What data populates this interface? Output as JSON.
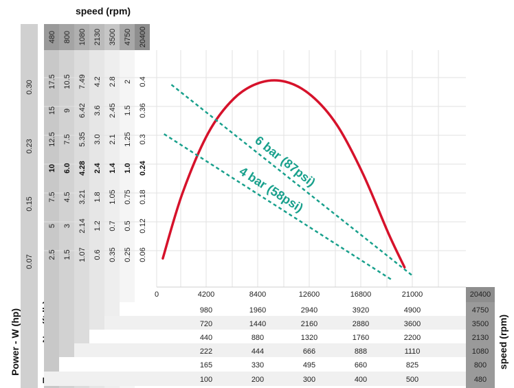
{
  "chart_data": {
    "type": "line",
    "title": "",
    "top_speed_label": "speed (rpm)",
    "right_speed_label": "speed (rpm)",
    "power_label": "Power - W (hp)",
    "torque_label": "Torque - Nm (ft.lb)",
    "top_speed_values": [
      "480",
      "800",
      "1080",
      "2130",
      "3500",
      "4750",
      "20400"
    ],
    "x_ticks": [
      "0",
      "4200",
      "8400",
      "12600",
      "16800",
      "21000"
    ],
    "xlim": [
      0,
      25200
    ],
    "ylim": [
      0,
      0.48
    ],
    "power_ticks": [
      "0.07",
      "0.15",
      "0.23",
      "0.30"
    ],
    "torque_columns": [
      [
        "2.5",
        "5",
        "7.5",
        "10",
        "12.5",
        "15",
        "17.5"
      ],
      [
        "1.5",
        "3",
        "4.5",
        "6.0",
        "7.5",
        "9",
        "10.5"
      ],
      [
        "1.07",
        "2.14",
        "3.21",
        "4.28",
        "5.35",
        "6.42",
        "7.49"
      ],
      [
        "0.6",
        "1.2",
        "1.8",
        "2.4",
        "3.0",
        "3.6",
        "4.2"
      ],
      [
        "0.35",
        "0.7",
        "1.05",
        "1.4",
        "2.1",
        "2.45",
        "2.8"
      ],
      [
        "0.25",
        "0.5",
        "0.75",
        "1.0",
        "1.25",
        "1.5",
        "2"
      ],
      [
        "0.06",
        "0.12",
        "0.18",
        "0.24",
        "0.3",
        "0.36",
        "0.4"
      ]
    ],
    "bold_row_index": 3,
    "bottom_table_rows": [
      {
        "values": [
          "980",
          "1960",
          "2940",
          "3920",
          "4900"
        ],
        "speed": "4750"
      },
      {
        "values": [
          "720",
          "1440",
          "2160",
          "2880",
          "3600"
        ],
        "speed": "3500"
      },
      {
        "values": [
          "440",
          "880",
          "1320",
          "1760",
          "2200"
        ],
        "speed": "2130"
      },
      {
        "values": [
          "222",
          "444",
          "666",
          "888",
          "1110"
        ],
        "speed": "1080"
      },
      {
        "values": [
          "165",
          "330",
          "495",
          "660",
          "825"
        ],
        "speed": "800"
      },
      {
        "values": [
          "100",
          "200",
          "300",
          "400",
          "500"
        ],
        "speed": "480"
      }
    ],
    "axis_end_speed": "20400",
    "series": [
      {
        "name": "",
        "style": "solid",
        "color": "#d6122b",
        "x": [
          500,
          2100,
          4200,
          6300,
          8400,
          10500,
          12600,
          14700,
          16800,
          18900,
          20200
        ],
        "y": [
          0.058,
          0.19,
          0.312,
          0.382,
          0.414,
          0.416,
          0.388,
          0.328,
          0.23,
          0.108,
          0.04
        ]
      },
      {
        "name": "6 bar (87psi)",
        "style": "dashed",
        "color": "#18a08c",
        "x": [
          1200,
          20900
        ],
        "y": [
          0.41,
          0.022
        ]
      },
      {
        "name": "4 bar (58psi)",
        "style": "dashed",
        "color": "#18a08c",
        "x": [
          600,
          19200
        ],
        "y": [
          0.31,
          0.014
        ]
      }
    ]
  }
}
